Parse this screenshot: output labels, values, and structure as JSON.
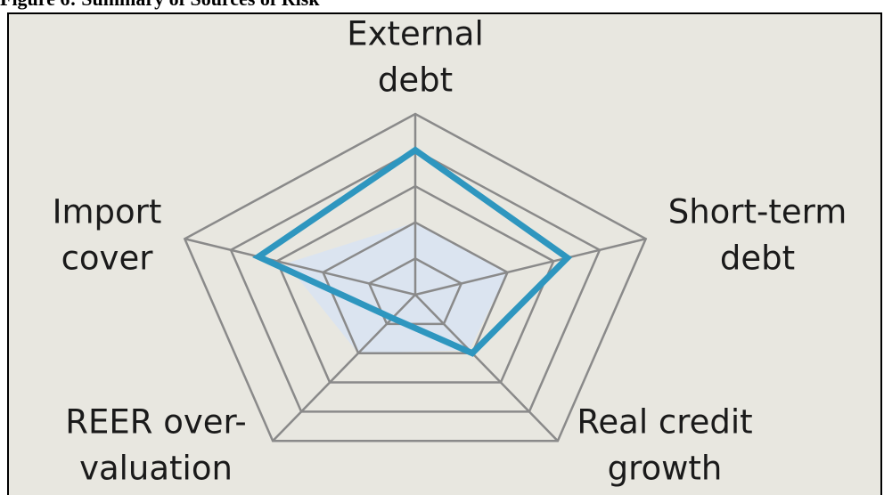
{
  "chart_data": {
    "type": "radar",
    "title": "Figure 6:  Summary of Sources of Risk",
    "categories": [
      [
        "External",
        "debt"
      ],
      [
        "Short-term",
        "debt"
      ],
      [
        "Real credit",
        "growth"
      ],
      [
        "REER over-",
        "valuation"
      ],
      [
        "Import",
        "cover"
      ]
    ],
    "rlim": [
      0,
      5
    ],
    "rticks": [
      1,
      2,
      3,
      4,
      5
    ],
    "grid_color": "#8a8a8a",
    "background": "#e8e7e0",
    "series": [
      {
        "style": "area",
        "color": "#dbe4f0",
        "values": [
          2,
          2,
          1.9,
          2,
          2.8
        ]
      },
      {
        "style": "line",
        "color": "#2e96bf",
        "values": [
          4,
          3.3,
          2,
          0.8,
          3.4
        ]
      }
    ]
  }
}
